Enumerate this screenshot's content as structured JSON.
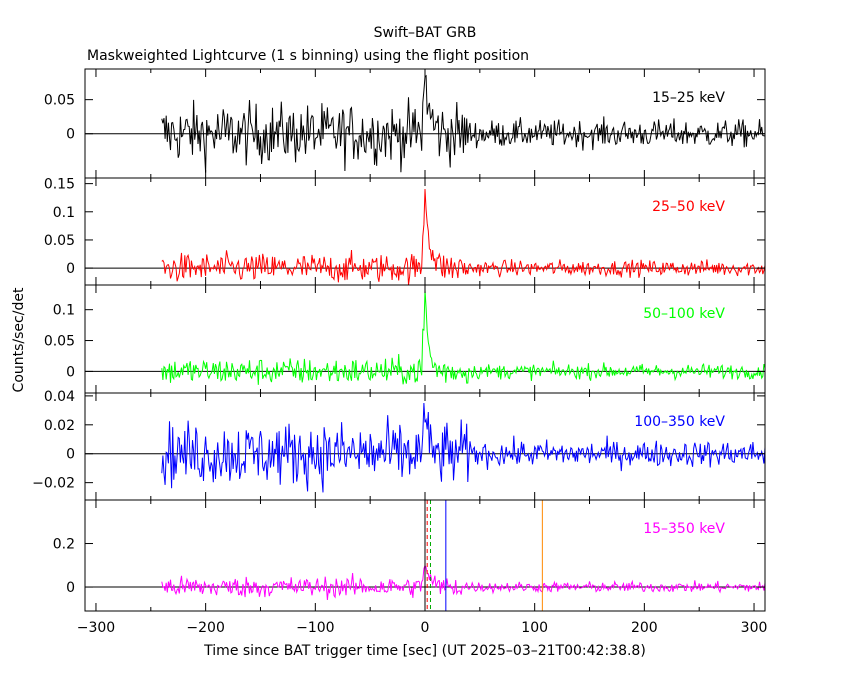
{
  "chart_data": {
    "type": "line",
    "title": "Swift–BAT GRB",
    "subtitle": "Maskweighted Lightcurve (1 s binning) using the flight position",
    "xlabel": "Time since BAT trigger time [sec] (UT 2025–03–21T00:42:38.8)",
    "ylabel": "Counts/sec/det",
    "xlim": [
      -310,
      310
    ],
    "x_ticks": [
      -300,
      -200,
      -100,
      0,
      100,
      200,
      300
    ],
    "x_tick_labels": [
      "−300",
      "−200",
      "−100",
      "0",
      "100",
      "200",
      "300"
    ],
    "data_range": [
      -240,
      310
    ],
    "bin_seconds": 1,
    "panels": [
      {
        "name": "15–25 keV",
        "color": "#000000",
        "ylim": [
          -0.065,
          0.095
        ],
        "y_ticks": [
          0,
          0.05
        ],
        "y_tick_labels": [
          "0",
          "0.05"
        ],
        "noise_pre": 0.022,
        "noise_post": 0.01,
        "peak": 0.09,
        "decay_s": 4
      },
      {
        "name": "25–50 keV",
        "color": "#ff0000",
        "ylim": [
          -0.03,
          0.16
        ],
        "y_ticks": [
          0,
          0.05,
          0.1,
          0.15
        ],
        "y_tick_labels": [
          "0",
          "0.05",
          "0.1",
          "0.15"
        ],
        "noise_pre": 0.013,
        "noise_post": 0.007,
        "peak": 0.145,
        "decay_s": 4
      },
      {
        "name": "50–100 keV",
        "color": "#00ff00",
        "ylim": [
          -0.035,
          0.14
        ],
        "y_ticks": [
          0,
          0.05,
          0.1
        ],
        "y_tick_labels": [
          "0",
          "0.05",
          "0.1"
        ],
        "noise_pre": 0.011,
        "noise_post": 0.006,
        "peak": 0.13,
        "decay_s": 3
      },
      {
        "name": "100–350 keV",
        "color": "#0000ff",
        "ylim": [
          -0.032,
          0.042
        ],
        "y_ticks": [
          -0.02,
          0,
          0.02,
          0.04
        ],
        "y_tick_labels": [
          "−0.02",
          "0",
          "0.02",
          "0.04"
        ],
        "noise_pre": 0.011,
        "noise_post": 0.0045,
        "peak": 0.035,
        "decay_s": 2
      },
      {
        "name": "15–350 keV",
        "color": "#ff00ff",
        "ylim": [
          -0.11,
          0.4
        ],
        "y_ticks": [
          0,
          0.2
        ],
        "y_tick_labels": [
          "0",
          "0.2"
        ],
        "noise_pre": 0.024,
        "noise_post": 0.012,
        "peak": 0.12,
        "decay_s": 4,
        "markers": [
          {
            "x": 0,
            "color": "#000000",
            "style": "solid"
          },
          {
            "x": 2,
            "color": "#ff0000",
            "style": "dashed"
          },
          {
            "x": 5,
            "color": "#00aa00",
            "style": "dashed"
          },
          {
            "x": 19,
            "color": "#0000ff",
            "style": "solid"
          },
          {
            "x": 107,
            "color": "#ff8800",
            "style": "solid"
          }
        ]
      }
    ]
  }
}
